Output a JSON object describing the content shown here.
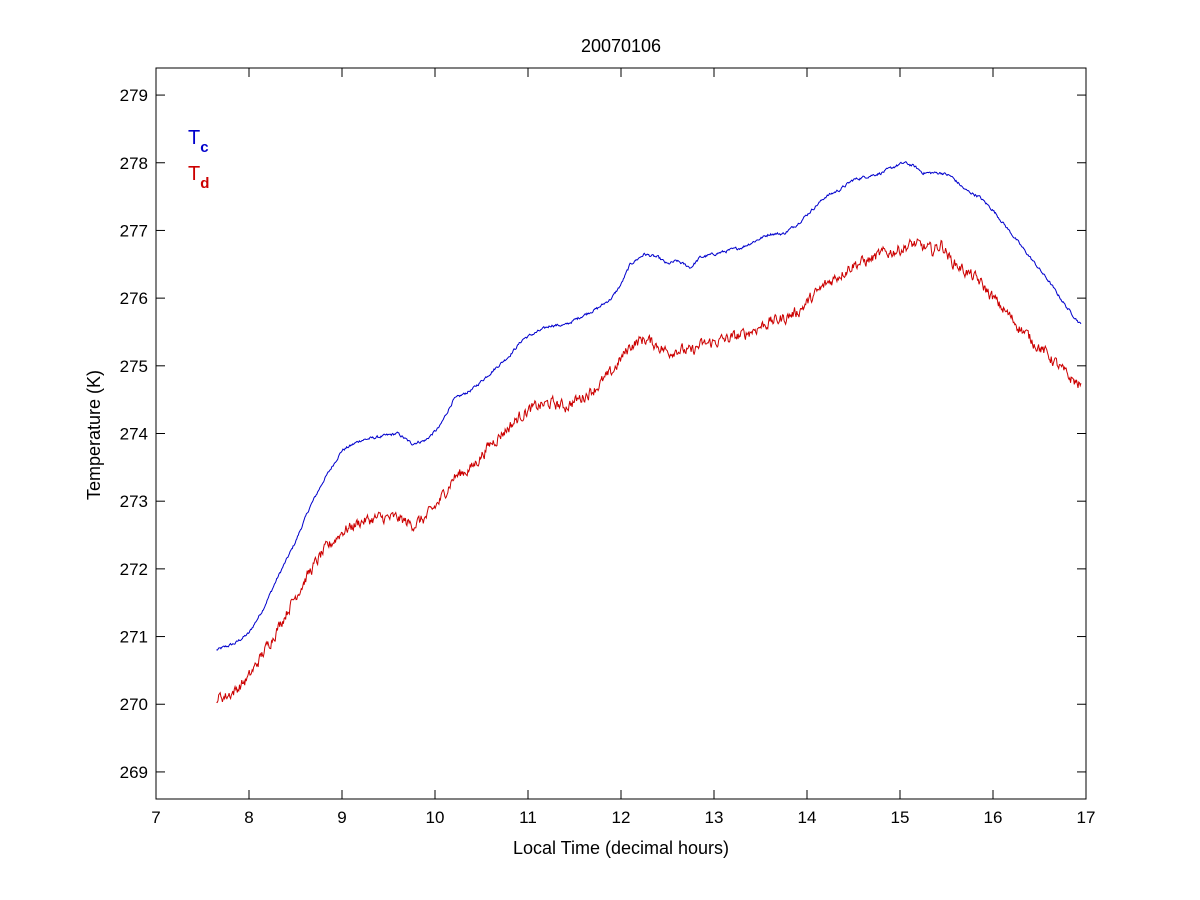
{
  "chart_data": {
    "type": "line",
    "title": "20070106",
    "xlabel": "Local Time (decimal hours)",
    "ylabel": "Temperature (K)",
    "xlim": [
      7,
      17
    ],
    "ylim": [
      268.6,
      279.4
    ],
    "xticks": [
      7,
      8,
      9,
      10,
      11,
      12,
      13,
      14,
      15,
      16,
      17
    ],
    "yticks": [
      269,
      270,
      271,
      272,
      273,
      274,
      275,
      276,
      277,
      278,
      279
    ],
    "grid": false,
    "legend_position": "top-left",
    "series": [
      {
        "name": "T",
        "subscript": "c",
        "color": "#0000cc",
        "noise": 0.04,
        "x": [
          7.65,
          7.75,
          7.85,
          8.0,
          8.15,
          8.3,
          8.5,
          8.65,
          8.8,
          9.0,
          9.2,
          9.4,
          9.6,
          9.75,
          9.9,
          10.05,
          10.2,
          10.4,
          10.6,
          10.8,
          10.95,
          11.1,
          11.25,
          11.4,
          11.6,
          11.75,
          11.9,
          12.0,
          12.1,
          12.25,
          12.4,
          12.5,
          12.6,
          12.75,
          12.85,
          13.0,
          13.15,
          13.3,
          13.45,
          13.6,
          13.75,
          13.9,
          14.05,
          14.2,
          14.35,
          14.5,
          14.65,
          14.8,
          14.95,
          15.05,
          15.15,
          15.25,
          15.35,
          15.45,
          15.55,
          15.7,
          15.85,
          16.0,
          16.2,
          16.4,
          16.6,
          16.8,
          16.95
        ],
        "y": [
          270.8,
          270.85,
          270.9,
          271.05,
          271.4,
          271.85,
          272.4,
          272.9,
          273.3,
          273.75,
          273.9,
          273.95,
          274.0,
          273.85,
          273.9,
          274.1,
          274.5,
          274.65,
          274.9,
          275.15,
          275.4,
          275.5,
          275.6,
          275.6,
          275.75,
          275.85,
          276.0,
          276.2,
          276.5,
          276.65,
          276.6,
          276.5,
          276.55,
          276.45,
          276.6,
          276.65,
          276.7,
          276.75,
          276.85,
          276.95,
          276.95,
          277.1,
          277.3,
          277.5,
          277.6,
          277.75,
          277.8,
          277.85,
          277.95,
          278.0,
          277.95,
          277.85,
          277.85,
          277.85,
          277.8,
          277.6,
          277.5,
          277.3,
          276.95,
          276.6,
          276.25,
          275.85,
          275.6
        ]
      },
      {
        "name": "T",
        "subscript": "d",
        "color": "#cc0000",
        "noise": 0.16,
        "x": [
          7.65,
          7.75,
          7.85,
          8.0,
          8.15,
          8.3,
          8.5,
          8.65,
          8.8,
          9.0,
          9.2,
          9.4,
          9.6,
          9.75,
          9.9,
          10.05,
          10.2,
          10.4,
          10.6,
          10.8,
          10.95,
          11.1,
          11.25,
          11.4,
          11.6,
          11.75,
          11.9,
          12.0,
          12.1,
          12.25,
          12.4,
          12.5,
          12.6,
          12.75,
          12.85,
          13.0,
          13.15,
          13.3,
          13.45,
          13.6,
          13.75,
          13.9,
          14.05,
          14.2,
          14.35,
          14.5,
          14.65,
          14.8,
          14.95,
          15.05,
          15.15,
          15.25,
          15.35,
          15.45,
          15.55,
          15.7,
          15.85,
          16.0,
          16.2,
          16.4,
          16.6,
          16.8,
          16.95
        ],
        "y": [
          270.1,
          270.12,
          270.2,
          270.4,
          270.75,
          271.1,
          271.6,
          271.95,
          272.25,
          272.55,
          272.7,
          272.75,
          272.75,
          272.65,
          272.75,
          273.0,
          273.35,
          273.5,
          273.85,
          274.1,
          274.3,
          274.4,
          274.45,
          274.4,
          274.55,
          274.7,
          274.9,
          275.1,
          275.3,
          275.4,
          275.3,
          275.2,
          275.25,
          275.2,
          275.3,
          275.35,
          275.4,
          275.45,
          275.55,
          275.65,
          275.7,
          275.8,
          276.0,
          276.2,
          276.35,
          276.5,
          276.55,
          276.65,
          276.7,
          276.75,
          276.8,
          276.75,
          276.7,
          276.8,
          276.55,
          276.4,
          276.25,
          276.0,
          275.7,
          275.4,
          275.15,
          274.85,
          274.7
        ]
      }
    ]
  }
}
